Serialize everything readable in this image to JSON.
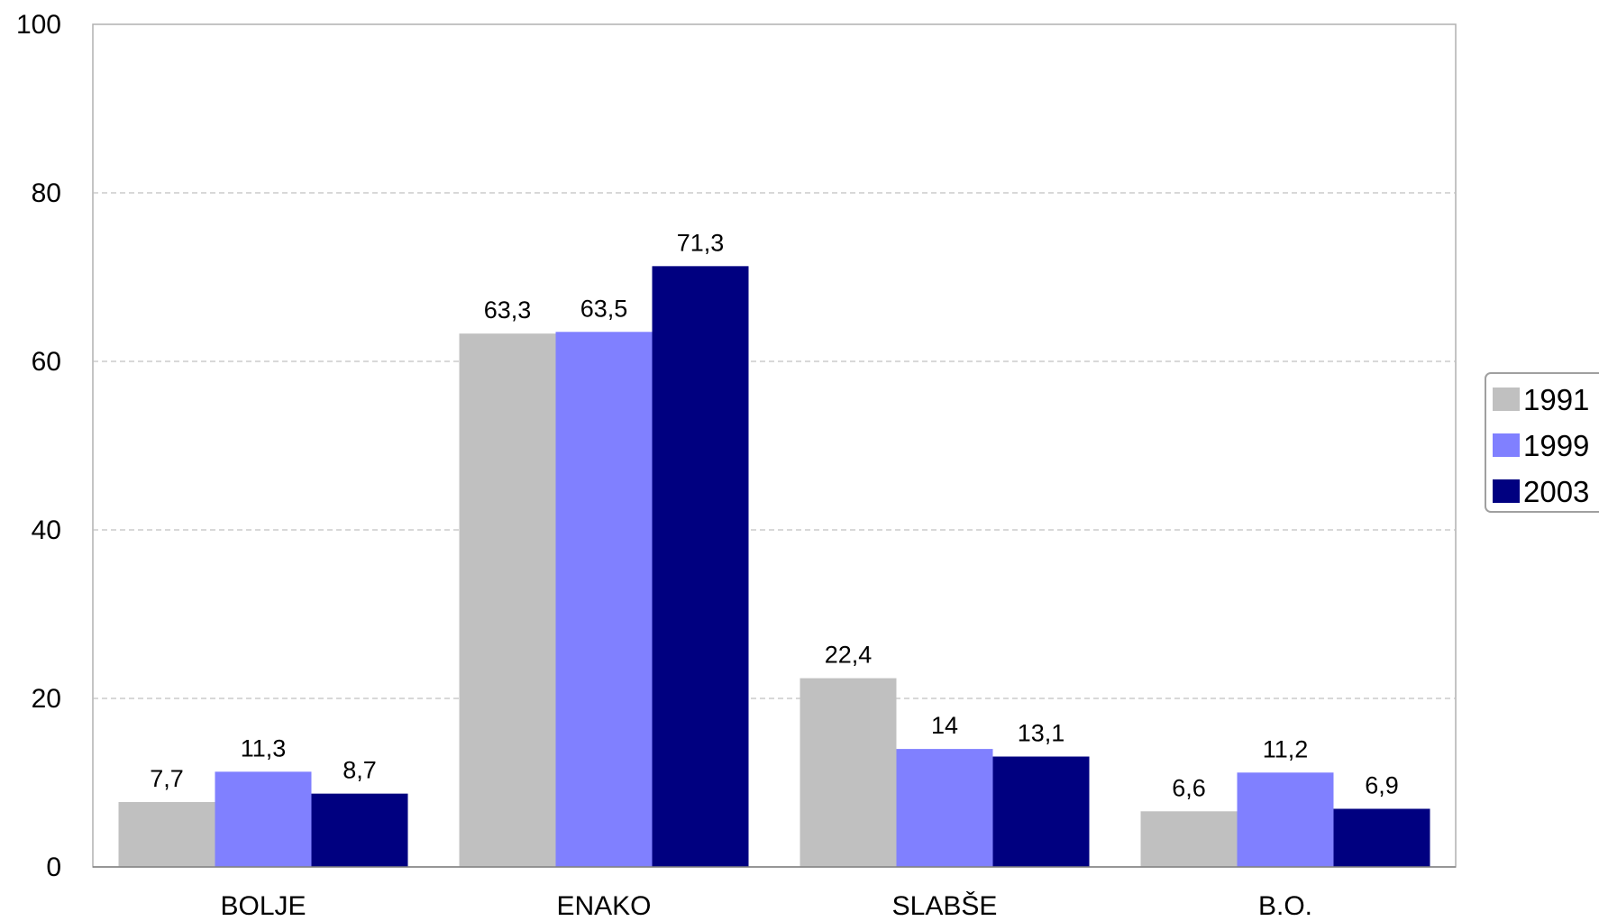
{
  "chart_data": {
    "type": "bar",
    "categories": [
      "BOLJE",
      "ENAKO",
      "SLABŠE",
      "B.O."
    ],
    "series": [
      {
        "name": "1991",
        "color": "#c0c0c0",
        "values": [
          7.7,
          63.3,
          22.4,
          6.6
        ],
        "labels": [
          "7,7",
          "63,3",
          "22,4",
          "6,6"
        ]
      },
      {
        "name": "1999",
        "color": "#8080ff",
        "values": [
          11.3,
          63.5,
          14,
          11.2
        ],
        "labels": [
          "11,3",
          "63,5",
          "14",
          "11,2"
        ]
      },
      {
        "name": "2003",
        "color": "#000080",
        "values": [
          8.7,
          71.3,
          13.1,
          6.9
        ],
        "labels": [
          "8,7",
          "71,3",
          "13,1",
          "6,9"
        ]
      }
    ],
    "title": "",
    "xlabel": "",
    "ylabel": "",
    "ylim": [
      0,
      100
    ],
    "yticks": [
      0,
      20,
      40,
      60,
      80,
      100
    ],
    "ytick_labels": [
      "0",
      "20",
      "40",
      "60",
      "80",
      "100"
    ],
    "grid": true,
    "legend_position": "right"
  }
}
